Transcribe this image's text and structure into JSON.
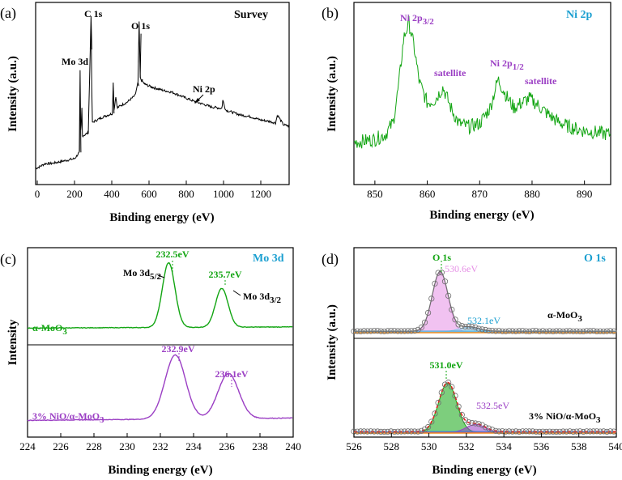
{
  "colors": {
    "black": "#000000",
    "green": "#12a512",
    "purple": "#9b3fc4",
    "teal": "#1b9fd0",
    "pink": "#e690e6",
    "grey_marker": "#6d6d6d",
    "red_dash": "#e32222",
    "orange": "#f08c1c"
  },
  "panels": {
    "a": {
      "label": "(a)",
      "title": "Survey",
      "xlabel": "Binding energy (eV)",
      "ylabel": "Intensity (a.u.)",
      "peaks": {
        "mo3d": "Mo 3d",
        "c1s": "C 1s",
        "o1s": "O 1s",
        "ni2p": "Ni 2p"
      }
    },
    "b": {
      "label": "(b)",
      "title": "Ni 2p",
      "xlabel": "Binding energy (eV)",
      "ylabel": "Intensity (a.u.)",
      "peaks": {
        "ni_32_main": "Ni 2p",
        "ni_32_sub": "3/2",
        "sat1": "satellite",
        "ni_12_main": "Ni 2p",
        "ni_12_sub": "1/2",
        "sat2": "satellite"
      }
    },
    "c": {
      "label": "(c)",
      "title": "Mo 3d",
      "xlabel": "Binding energy (eV)",
      "ylabel": "Intensity",
      "samples": {
        "top_main": "α-MoO",
        "top_sub": "3",
        "bottom_main": "3% NiO/α-MoO",
        "bottom_sub": "3"
      },
      "annotations": {
        "p1": "232.5eV",
        "p2": "235.7eV",
        "p3": "232.9eV",
        "p4": "236.1eV",
        "mo52_main": "Mo 3d",
        "mo52_sub": "5/2",
        "mo32_main": "Mo 3d",
        "mo32_sub": "3/2"
      }
    },
    "d": {
      "label": "(d)",
      "title": "O 1s",
      "xlabel": "Binding energy (eV)",
      "ylabel": "Intensity (a.u.)",
      "samples": {
        "top_main": "α-MoO",
        "top_sub": "3",
        "bottom_main": "3% NiO/α-MoO",
        "bottom_sub": "3"
      },
      "annotations": {
        "o1s": "O 1s",
        "p1": "530.6eV",
        "p2": "532.1eV",
        "p3": "531.0eV",
        "p4": "532.5eV"
      }
    }
  },
  "chart_data": [
    {
      "panel": "a",
      "type": "line",
      "title": "Survey",
      "xlabel": "Binding energy (eV)",
      "ylabel": "Intensity (a.u.)",
      "xlim": [
        0,
        1300
      ],
      "xticks": [
        "0",
        "200",
        "400",
        "600",
        "800",
        "1000",
        "1200"
      ],
      "xtick_values": [
        0,
        200,
        400,
        600,
        800,
        1000,
        1200
      ],
      "series": [
        {
          "name": "Survey",
          "color": "#000000",
          "x": [
            0,
            20,
            50,
            80,
            120,
            160,
            200,
            225,
            228,
            232,
            236,
            240,
            270,
            284,
            290,
            300,
            350,
            395,
            398,
            402,
            412,
            418,
            425,
            470,
            510,
            525,
            531,
            536,
            545,
            560,
            600,
            660,
            700,
            760,
            800,
            850,
            900,
            955,
            960,
            975,
            1000,
            1050,
            1100,
            1150,
            1200,
            1230,
            1240,
            1270,
            1300
          ],
          "y": [
            0.02,
            0.03,
            0.05,
            0.05,
            0.06,
            0.07,
            0.08,
            0.12,
            0.62,
            0.12,
            0.45,
            0.22,
            0.24,
            0.96,
            0.3,
            0.31,
            0.34,
            0.36,
            0.55,
            0.38,
            0.47,
            0.39,
            0.4,
            0.43,
            0.47,
            0.55,
            0.92,
            0.58,
            0.56,
            0.54,
            0.52,
            0.5,
            0.49,
            0.46,
            0.44,
            0.42,
            0.4,
            0.39,
            0.44,
            0.38,
            0.37,
            0.35,
            0.34,
            0.32,
            0.31,
            0.3,
            0.35,
            0.29,
            0.28
          ]
        }
      ]
    },
    {
      "panel": "b",
      "type": "line",
      "title": "Ni 2p",
      "xlabel": "Binding energy (eV)",
      "ylabel": "Intensity (a.u.)",
      "xlim": [
        846,
        895
      ],
      "xticks": [
        "850",
        "860",
        "870",
        "880",
        "890"
      ],
      "xtick_values": [
        850,
        860,
        870,
        880,
        890
      ],
      "series": [
        {
          "name": "Ni 2p",
          "color": "#12a512",
          "x": [
            846,
            848,
            850,
            852,
            853.5,
            854.5,
            855.5,
            856.5,
            857.5,
            858.5,
            860,
            861.5,
            863,
            864.5,
            866,
            868,
            870,
            872,
            873.5,
            875,
            876.5,
            878,
            879.5,
            881,
            883,
            885,
            887,
            889,
            891,
            893,
            895
          ],
          "y": [
            0.2,
            0.21,
            0.22,
            0.25,
            0.33,
            0.55,
            0.86,
            0.96,
            0.8,
            0.58,
            0.45,
            0.47,
            0.55,
            0.42,
            0.32,
            0.3,
            0.32,
            0.42,
            0.6,
            0.5,
            0.42,
            0.45,
            0.48,
            0.44,
            0.38,
            0.33,
            0.3,
            0.28,
            0.27,
            0.26,
            0.25
          ]
        }
      ]
    },
    {
      "panel": "c",
      "type": "line",
      "title": "Mo 3d",
      "xlabel": "Binding energy (eV)",
      "ylabel": "Intensity",
      "xlim": [
        224,
        240
      ],
      "xticks": [
        "224",
        "226",
        "228",
        "230",
        "232",
        "234",
        "236",
        "238",
        "240"
      ],
      "xtick_values": [
        224,
        226,
        228,
        230,
        232,
        234,
        236,
        238,
        240
      ],
      "series": [
        {
          "name": "α-MoO3",
          "color": "#12a512",
          "peaks": [
            232.5,
            235.7
          ],
          "labels": [
            "232.5eV",
            "235.7eV"
          ]
        },
        {
          "name": "3% NiO/α-MoO3",
          "color": "#9b3fc4",
          "peaks": [
            232.9,
            236.1
          ],
          "labels": [
            "232.9eV",
            "236.1eV"
          ]
        }
      ]
    },
    {
      "panel": "d",
      "type": "line",
      "title": "O 1s",
      "xlabel": "Binding energy (eV)",
      "ylabel": "Intensity (a.u.)",
      "xlim": [
        526,
        540
      ],
      "xticks": [
        "526",
        "528",
        "530",
        "532",
        "534",
        "536",
        "538",
        "540"
      ],
      "xtick_values": [
        526,
        528,
        530,
        532,
        534,
        536,
        538,
        540
      ],
      "series": [
        {
          "name": "α-MoO3",
          "color": "#6d6d6d",
          "components": [
            530.6,
            532.1
          ],
          "labels": [
            "530.6eV",
            "532.1eV"
          ]
        },
        {
          "name": "3% NiO/α-MoO3",
          "color": "#e32222",
          "components": [
            531.0,
            532.5
          ],
          "labels": [
            "531.0eV",
            "532.5eV"
          ]
        }
      ]
    }
  ]
}
